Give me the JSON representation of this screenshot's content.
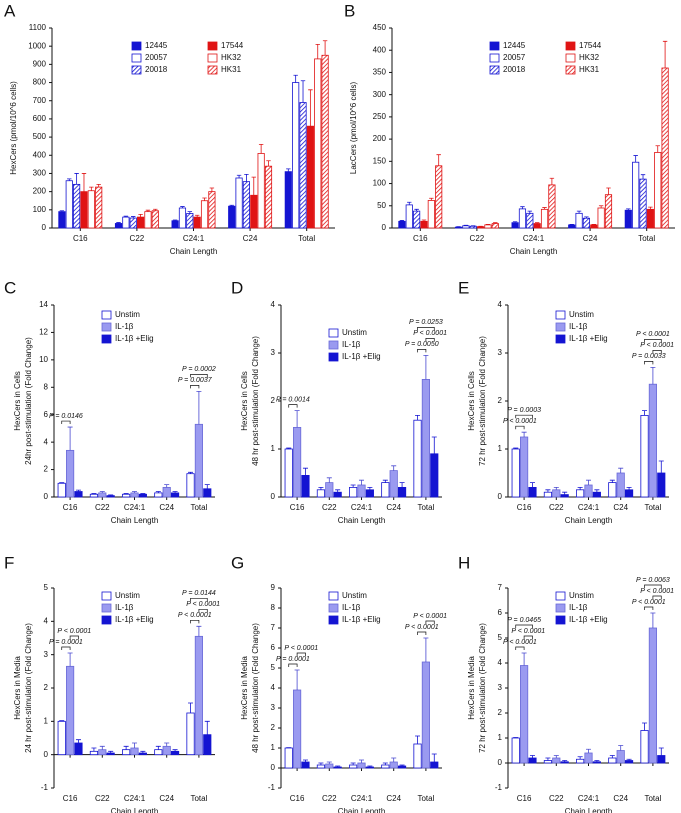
{
  "chart_data": [
    {
      "type": "bar",
      "panel": "A",
      "y_label": "HexCers (pmol/10^6 cells)",
      "x_label": "Chain Length",
      "categories": [
        "C16",
        "C22",
        "C24:1",
        "C24",
        "Total"
      ],
      "ylim": [
        0,
        1100
      ],
      "yticks": [
        0,
        100,
        200,
        300,
        400,
        500,
        600,
        700,
        800,
        900,
        1000,
        1100
      ],
      "series": [
        {
          "name": "12445",
          "color": "#1414d2",
          "style": "solid",
          "values": [
            90,
            25,
            40,
            120,
            310
          ],
          "errors": [
            5,
            5,
            4,
            5,
            15
          ]
        },
        {
          "name": "20057",
          "color": "#1414d2",
          "style": "open",
          "values": [
            260,
            60,
            110,
            275,
            800
          ],
          "errors": [
            10,
            5,
            8,
            15,
            40
          ]
        },
        {
          "name": "20018",
          "color": "#1414d2",
          "style": "hatched",
          "values": [
            240,
            55,
            80,
            255,
            690
          ],
          "errors": [
            60,
            8,
            10,
            40,
            120
          ]
        },
        {
          "name": "17544",
          "color": "#e01414",
          "style": "solid",
          "values": [
            200,
            60,
            60,
            180,
            560
          ],
          "errors": [
            100,
            15,
            10,
            100,
            200
          ]
        },
        {
          "name": "HK32",
          "color": "#e01414",
          "style": "open",
          "values": [
            205,
            90,
            150,
            410,
            930
          ],
          "errors": [
            20,
            8,
            15,
            50,
            80
          ]
        },
        {
          "name": "HK31",
          "color": "#e01414",
          "style": "hatched",
          "values": [
            225,
            95,
            200,
            340,
            950
          ],
          "errors": [
            15,
            8,
            20,
            30,
            80
          ]
        }
      ],
      "annotations": []
    },
    {
      "type": "bar",
      "panel": "B",
      "y_label": "LacCers (pmol/10^6 cells)",
      "x_label": "Chain Length",
      "categories": [
        "C16",
        "C22",
        "C24:1",
        "C24",
        "Total"
      ],
      "ylim": [
        0,
        450
      ],
      "yticks": [
        0,
        50,
        100,
        150,
        200,
        250,
        300,
        350,
        400,
        450
      ],
      "series": [
        {
          "name": "12445",
          "color": "#1414d2",
          "style": "solid",
          "values": [
            15,
            2,
            12,
            7,
            40
          ],
          "errors": [
            2,
            1,
            2,
            1,
            3
          ]
        },
        {
          "name": "20057",
          "color": "#1414d2",
          "style": "open",
          "values": [
            52,
            5,
            43,
            33,
            148
          ],
          "errors": [
            6,
            1,
            5,
            5,
            15
          ]
        },
        {
          "name": "20018",
          "color": "#1414d2",
          "style": "hatched",
          "values": [
            38,
            4,
            33,
            22,
            110
          ],
          "errors": [
            4,
            1,
            5,
            3,
            10
          ]
        },
        {
          "name": "17544",
          "color": "#e01414",
          "style": "solid",
          "values": [
            15,
            3,
            10,
            7,
            42
          ],
          "errors": [
            3,
            1,
            2,
            1,
            5
          ]
        },
        {
          "name": "HK32",
          "color": "#e01414",
          "style": "open",
          "values": [
            62,
            7,
            42,
            45,
            170
          ],
          "errors": [
            5,
            1,
            4,
            5,
            15
          ]
        },
        {
          "name": "HK31",
          "color": "#e01414",
          "style": "hatched",
          "values": [
            140,
            10,
            97,
            75,
            360
          ],
          "errors": [
            25,
            2,
            15,
            15,
            60
          ]
        }
      ],
      "annotations": []
    },
    {
      "type": "bar",
      "panel": "C",
      "y_label": [
        "HexCers in Cells",
        "24hr post-stimulation (Fold Change)"
      ],
      "x_label": "Chain Length",
      "categories": [
        "C16",
        "C22",
        "C24:1",
        "C24",
        "Total"
      ],
      "ylim": [
        0,
        14
      ],
      "yticks": [
        0,
        2,
        4,
        6,
        8,
        10,
        12,
        14
      ],
      "series": [
        {
          "name": "Unstim",
          "color": "#1414d2",
          "style": "open",
          "values": [
            1,
            0.2,
            0.2,
            0.3,
            1.7
          ],
          "errors": [
            0.05,
            0.05,
            0.05,
            0.1,
            0.1
          ]
        },
        {
          "name": "IL-1β",
          "color": "#9a9af0",
          "style": "solid",
          "values": [
            3.4,
            0.3,
            0.3,
            0.7,
            5.3
          ],
          "errors": [
            1.7,
            0.1,
            0.1,
            0.2,
            2.4
          ]
        },
        {
          "name": "IL-1β +Elig",
          "color": "#1414d2",
          "style": "solid",
          "values": [
            0.4,
            0.1,
            0.2,
            0.3,
            0.6
          ],
          "errors": [
            0.1,
            0.05,
            0.05,
            0.1,
            0.3
          ]
        }
      ],
      "annotations": [
        "P = 0.0146",
        "P = 0.0002",
        "P = 0.0037"
      ]
    },
    {
      "type": "bar",
      "panel": "D",
      "y_label": [
        "HexCers in Cells",
        "48 hr post-stimulation (Fold Change)"
      ],
      "x_label": "Chain Length",
      "categories": [
        "C16",
        "C22",
        "C24:1",
        "C24",
        "Total"
      ],
      "ylim": [
        0,
        4
      ],
      "yticks": [
        0,
        1,
        2,
        3,
        4
      ],
      "series": [
        {
          "name": "Unstim",
          "color": "#1414d2",
          "style": "open",
          "values": [
            1,
            0.15,
            0.2,
            0.3,
            1.6
          ],
          "errors": [
            0.02,
            0.05,
            0.05,
            0.05,
            0.1
          ]
        },
        {
          "name": "IL-1β",
          "color": "#9a9af0",
          "style": "solid",
          "values": [
            1.45,
            0.3,
            0.25,
            0.55,
            2.45
          ],
          "errors": [
            0.35,
            0.1,
            0.1,
            0.1,
            0.5
          ]
        },
        {
          "name": "IL-1β +Elig",
          "color": "#1414d2",
          "style": "solid",
          "values": [
            0.45,
            0.1,
            0.15,
            0.2,
            0.9
          ],
          "errors": [
            0.15,
            0.05,
            0.05,
            0.1,
            0.35
          ]
        }
      ],
      "annotations": [
        "P = 0.0014",
        "P = 0.0253",
        "P < 0.0001",
        "P = 0.0050"
      ]
    },
    {
      "type": "bar",
      "panel": "E",
      "y_label": [
        "HexCers in Cells",
        "72 hr post-stimulation (Fold Change)"
      ],
      "x_label": "Chain Length",
      "categories": [
        "C16",
        "C22",
        "C24:1",
        "C24",
        "Total"
      ],
      "ylim": [
        0,
        4
      ],
      "yticks": [
        0,
        1,
        2,
        3,
        4
      ],
      "series": [
        {
          "name": "Unstim",
          "color": "#1414d2",
          "style": "open",
          "values": [
            1,
            0.1,
            0.15,
            0.3,
            1.7
          ],
          "errors": [
            0.02,
            0.05,
            0.05,
            0.05,
            0.1
          ]
        },
        {
          "name": "IL-1β",
          "color": "#9a9af0",
          "style": "solid",
          "values": [
            1.25,
            0.15,
            0.25,
            0.5,
            2.35
          ],
          "errors": [
            0.1,
            0.05,
            0.1,
            0.1,
            0.35
          ]
        },
        {
          "name": "IL-1β +Elig",
          "color": "#1414d2",
          "style": "solid",
          "values": [
            0.2,
            0.05,
            0.1,
            0.15,
            0.5
          ],
          "errors": [
            0.1,
            0.05,
            0.05,
            0.05,
            0.25
          ]
        }
      ],
      "annotations": [
        "P = 0.0003",
        "P < 0.0001",
        "P < 0.0001",
        "P < 0.0001",
        "P = 0.0033"
      ]
    },
    {
      "type": "bar",
      "panel": "F",
      "y_label": [
        "HexCers in Media",
        "24 hr post-stimulation (Fold Change)"
      ],
      "x_label": "Chain Length",
      "categories": [
        "C16",
        "C22",
        "C24:1",
        "C24",
        "Total"
      ],
      "ylim": [
        -1,
        5
      ],
      "yticks": [
        -1,
        0,
        1,
        2,
        3,
        4,
        5
      ],
      "series": [
        {
          "name": "Unstim",
          "color": "#1414d2",
          "style": "open",
          "values": [
            1,
            0.1,
            0.15,
            0.15,
            1.25
          ],
          "errors": [
            0.02,
            0.1,
            0.1,
            0.1,
            0.3
          ]
        },
        {
          "name": "IL-1β",
          "color": "#9a9af0",
          "style": "solid",
          "values": [
            2.65,
            0.15,
            0.2,
            0.25,
            3.55
          ],
          "errors": [
            0.4,
            0.1,
            0.15,
            0.1,
            0.3
          ]
        },
        {
          "name": "IL-1β +Elig",
          "color": "#1414d2",
          "style": "solid",
          "values": [
            0.35,
            0.05,
            0.05,
            0.1,
            0.6
          ],
          "errors": [
            0.1,
            0.05,
            0.05,
            0.05,
            0.4
          ]
        }
      ],
      "annotations": [
        "P < 0.0001",
        "P = 0.0001",
        "P = 0.0144",
        "P < 0.0001",
        "P < 0.0001"
      ]
    },
    {
      "type": "bar",
      "panel": "G",
      "y_label": [
        "HexCers in Media",
        "48 hr post-stimulation (Fold Change)"
      ],
      "x_label": "Chain Length",
      "categories": [
        "C16",
        "C22",
        "C24:1",
        "C24",
        "Total"
      ],
      "ylim": [
        -1,
        9
      ],
      "yticks": [
        -1,
        0,
        1,
        2,
        3,
        4,
        5,
        6,
        7,
        8,
        9
      ],
      "series": [
        {
          "name": "Unstim",
          "color": "#1414d2",
          "style": "open",
          "values": [
            1,
            0.15,
            0.15,
            0.15,
            1.2
          ],
          "errors": [
            0.02,
            0.1,
            0.1,
            0.1,
            0.4
          ]
        },
        {
          "name": "IL-1β",
          "color": "#9a9af0",
          "style": "solid",
          "values": [
            3.9,
            0.2,
            0.25,
            0.3,
            5.3
          ],
          "errors": [
            1,
            0.1,
            0.15,
            0.2,
            1.2
          ]
        },
        {
          "name": "IL-1β +Elig",
          "color": "#1414d2",
          "style": "solid",
          "values": [
            0.3,
            0.05,
            0.05,
            0.1,
            0.3
          ],
          "errors": [
            0.1,
            0.05,
            0.05,
            0.05,
            0.4
          ]
        }
      ],
      "annotations": [
        "P < 0.0001",
        "P = 0.0001",
        "P < 0.0001",
        "P < 0.0001"
      ]
    },
    {
      "type": "bar",
      "panel": "H",
      "y_label": [
        "HexCers in Media",
        "72 hr post-stimulation (Fold Change)"
      ],
      "x_label": "Chain Length",
      "categories": [
        "C16",
        "C22",
        "C24:1",
        "C24",
        "Total"
      ],
      "ylim": [
        -1,
        7
      ],
      "yticks": [
        -1,
        0,
        1,
        2,
        3,
        4,
        5,
        6,
        7
      ],
      "series": [
        {
          "name": "Unstim",
          "color": "#1414d2",
          "style": "open",
          "values": [
            1,
            0.1,
            0.15,
            0.2,
            1.3
          ],
          "errors": [
            0.02,
            0.1,
            0.1,
            0.1,
            0.3
          ]
        },
        {
          "name": "IL-1β",
          "color": "#9a9af0",
          "style": "solid",
          "values": [
            3.9,
            0.2,
            0.4,
            0.5,
            5.4
          ],
          "errors": [
            0.5,
            0.1,
            0.15,
            0.2,
            0.6
          ]
        },
        {
          "name": "IL-1β +Elig",
          "color": "#1414d2",
          "style": "solid",
          "values": [
            0.2,
            0.05,
            0.05,
            0.1,
            0.3
          ],
          "errors": [
            0.1,
            0.05,
            0.05,
            0.05,
            0.3
          ]
        }
      ],
      "annotations": [
        "P = 0.0465",
        "P < 0.0001",
        "P < 0.0001",
        "P = 0.0063",
        "P < 0.0001",
        "P < 0.0001"
      ]
    }
  ]
}
